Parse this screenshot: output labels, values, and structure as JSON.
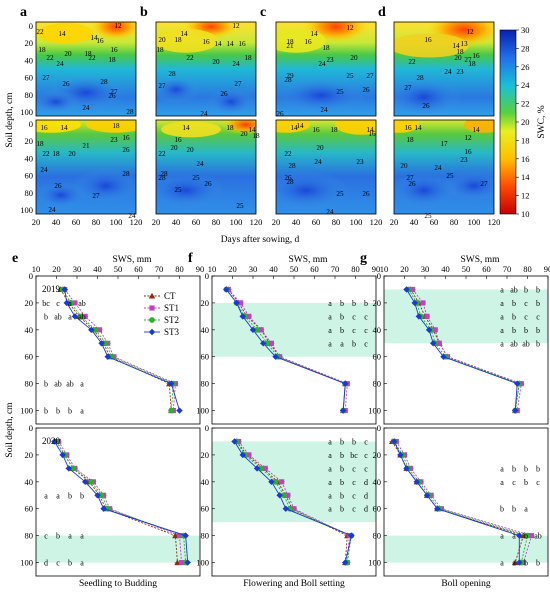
{
  "heatmaps": {
    "panel_letters": [
      "a",
      "b",
      "c",
      "d"
    ],
    "x_ticks": [
      "20",
      "40",
      "60",
      "80",
      "100",
      "120"
    ],
    "y_ticks": [
      "0",
      "20",
      "40",
      "60",
      "80",
      "100"
    ],
    "ylabel": "Soil depth, cm",
    "xlabel": "Days after sowing, d",
    "colorbar_label": "SWC, %",
    "colorbar_ticks": [
      "10",
      "12",
      "14",
      "16",
      "18",
      "20",
      "22",
      "24",
      "26",
      "28",
      "30"
    ],
    "contour_labels": [
      [
        [
          "14",
          62,
          36
        ],
        [
          "12",
          118,
          28
        ],
        [
          "14",
          94,
          40
        ],
        [
          "16",
          100,
          43
        ],
        [
          "18",
          42,
          52
        ],
        [
          "16",
          114,
          52
        ],
        [
          "20",
          68,
          56
        ],
        [
          "18",
          88,
          56
        ],
        [
          "22",
          92,
          60
        ],
        [
          "22",
          50,
          60
        ],
        [
          "24",
          60,
          66
        ],
        [
          "18",
          112,
          62
        ],
        [
          "27",
          46,
          80
        ],
        [
          "26",
          66,
          86
        ],
        [
          "28",
          104,
          84
        ],
        [
          "27",
          114,
          94
        ],
        [
          "26",
          112,
          98
        ],
        [
          "24",
          86,
          110
        ],
        [
          "28",
          130,
          114
        ],
        [
          "22",
          40,
          34
        ]
      ],
      [
        [
          "14",
          184,
          36
        ],
        [
          "12",
          236,
          28
        ],
        [
          "20",
          162,
          42
        ],
        [
          "18",
          178,
          42
        ],
        [
          "16",
          206,
          44
        ],
        [
          "14",
          218,
          46
        ],
        [
          "14",
          230,
          46
        ],
        [
          "16",
          242,
          46
        ],
        [
          "18",
          160,
          52
        ],
        [
          "22",
          190,
          60
        ],
        [
          "20",
          216,
          64
        ],
        [
          "24",
          236,
          66
        ],
        [
          "28",
          172,
          76
        ],
        [
          "27",
          162,
          88
        ],
        [
          "27",
          238,
          86
        ],
        [
          "26",
          224,
          96
        ],
        [
          "24",
          204,
          116
        ],
        [
          "18",
          248,
          60
        ]
      ],
      [
        [
          "14",
          314,
          36
        ],
        [
          "12",
          350,
          30
        ],
        [
          "18",
          290,
          44
        ],
        [
          "16",
          308,
          44
        ],
        [
          "18",
          326,
          50
        ],
        [
          "21",
          290,
          48
        ],
        [
          "20",
          354,
          60
        ],
        [
          "23",
          330,
          62
        ],
        [
          "24",
          322,
          66
        ],
        [
          "29",
          290,
          78
        ],
        [
          "28",
          288,
          82
        ],
        [
          "25",
          350,
          78
        ],
        [
          "27",
          370,
          78
        ],
        [
          "25",
          340,
          94
        ],
        [
          "26",
          366,
          92
        ],
        [
          "24",
          324,
          112
        ],
        [
          "26",
          280,
          116
        ]
      ],
      [
        [
          "12",
          470,
          34
        ],
        [
          "16",
          428,
          42
        ],
        [
          "13",
          464,
          46
        ],
        [
          "14",
          456,
          48
        ],
        [
          "18",
          460,
          54
        ],
        [
          "20",
          458,
          60
        ],
        [
          "27",
          468,
          62
        ],
        [
          "22",
          412,
          64
        ],
        [
          "18",
          472,
          66
        ],
        [
          "24",
          448,
          74
        ],
        [
          "23",
          460,
          74
        ],
        [
          "28",
          420,
          80
        ],
        [
          "27",
          408,
          90
        ],
        [
          "26",
          426,
          108
        ],
        [
          "16",
          476,
          58
        ]
      ],
      [
        [
          "16",
          44,
          130
        ],
        [
          "14",
          64,
          130
        ],
        [
          "18",
          116,
          128
        ],
        [
          "21",
          86,
          148
        ],
        [
          "23",
          114,
          142
        ],
        [
          "16",
          126,
          140
        ],
        [
          "22",
          46,
          156
        ],
        [
          "18",
          56,
          156
        ],
        [
          "20",
          72,
          156
        ],
        [
          "26",
          126,
          152
        ],
        [
          "24",
          44,
          172
        ],
        [
          "26",
          58,
          188
        ],
        [
          "28",
          126,
          176
        ],
        [
          "27",
          96,
          198
        ],
        [
          "24",
          52,
          212
        ],
        [
          "24",
          132,
          218
        ],
        [
          "18",
          40,
          146
        ]
      ],
      [
        [
          "14",
          186,
          130
        ],
        [
          "18",
          230,
          130
        ],
        [
          "20",
          244,
          136
        ],
        [
          "14",
          252,
          132
        ],
        [
          "18",
          256,
          138
        ],
        [
          "16",
          178,
          142
        ],
        [
          "22",
          162,
          156
        ],
        [
          "20",
          190,
          152
        ],
        [
          "24",
          200,
          166
        ],
        [
          "28",
          164,
          176
        ],
        [
          "28",
          162,
          180
        ],
        [
          "25",
          196,
          180
        ],
        [
          "26",
          208,
          186
        ],
        [
          "25",
          178,
          192
        ],
        [
          "25",
          240,
          208
        ],
        [
          "20",
          174,
          150
        ]
      ],
      [
        [
          "14",
          294,
          130
        ],
        [
          "14",
          300,
          128
        ],
        [
          "16",
          316,
          132
        ],
        [
          "18",
          334,
          132
        ],
        [
          "14",
          370,
          132
        ],
        [
          "16",
          372,
          136
        ],
        [
          "20",
          320,
          150
        ],
        [
          "22",
          288,
          156
        ],
        [
          "28",
          292,
          168
        ],
        [
          "24",
          318,
          164
        ],
        [
          "26",
          288,
          180
        ],
        [
          "23",
          360,
          164
        ],
        [
          "25",
          340,
          196
        ],
        [
          "26",
          366,
          196
        ],
        [
          "24",
          330,
          214
        ],
        [
          "28",
          290,
          184
        ]
      ],
      [
        [
          "16",
          408,
          130
        ],
        [
          "14",
          418,
          130
        ],
        [
          "18",
          410,
          142
        ],
        [
          "17",
          444,
          146
        ],
        [
          "12",
          468,
          140
        ],
        [
          "14",
          476,
          132
        ],
        [
          "16",
          468,
          154
        ],
        [
          "20",
          404,
          168
        ],
        [
          "24",
          438,
          170
        ],
        [
          "23",
          464,
          162
        ],
        [
          "25",
          450,
          178
        ],
        [
          "27",
          484,
          186
        ],
        [
          "26",
          412,
          186
        ],
        [
          "25",
          428,
          218
        ],
        [
          "27",
          410,
          180
        ]
      ]
    ]
  },
  "sws": {
    "panel_letters": [
      "e",
      "f",
      "g"
    ],
    "x_title": "SWS, mm",
    "x_ticks": [
      "10",
      "20",
      "30",
      "40",
      "50",
      "60",
      "70",
      "80",
      "90"
    ],
    "y_ticks": [
      "0",
      "20",
      "40",
      "60",
      "80",
      "100"
    ],
    "ylabel": "Soil depth, cm",
    "stage_labels": [
      "Seedling to Budding",
      "Flowering and Boll setting",
      "Boll opening"
    ],
    "year_labels": [
      "2019",
      "2020"
    ],
    "legend": [
      "CT",
      "ST1",
      "ST2",
      "ST3"
    ],
    "series_colors": [
      "#8b2e0f",
      "#c040c0",
      "#2cb030",
      "#1a3ad0"
    ],
    "shaded_bands": [
      [],
      [
        [
          20,
          60
        ]
      ],
      [
        [
          10,
          50
        ]
      ],
      [
        [
          80,
          100
        ]
      ],
      [
        [
          10,
          70
        ]
      ],
      [
        [
          80,
          100
        ]
      ]
    ],
    "letters": [
      [
        [
          "bc",
          "c",
          "a",
          "ab",
          20
        ],
        [
          "b",
          "ab",
          "a",
          "ab",
          30
        ],
        [
          "b",
          "ab",
          "ab",
          "a",
          80
        ],
        [
          "b",
          "b",
          "b",
          "a",
          100
        ]
      ],
      [
        [
          "a",
          "b",
          "b",
          "b",
          20
        ],
        [
          "a",
          "b",
          "c",
          "c",
          30
        ],
        [
          "a",
          "b",
          "c",
          "c",
          40
        ],
        [
          "a",
          "a",
          "b",
          "c",
          50
        ]
      ],
      [
        [
          "a",
          "ab",
          "b",
          "b",
          10
        ],
        [
          "a",
          "b",
          "c",
          "b",
          20
        ],
        [
          "a",
          "b",
          "c",
          "c",
          30
        ],
        [
          "a",
          "b",
          "b",
          "b",
          40
        ],
        [
          "a",
          "ab",
          "ab",
          "b",
          50
        ]
      ],
      [
        [
          "a",
          "a",
          "b",
          "b",
          50
        ],
        [
          "c",
          "b",
          "a",
          "a",
          80
        ],
        [
          "d",
          "c",
          "b",
          "a",
          100
        ]
      ],
      [
        [
          "a",
          "b",
          "b",
          "c",
          10
        ],
        [
          "a",
          "b",
          "bc",
          "c",
          20
        ],
        [
          "a",
          "b",
          "c",
          "c",
          30
        ],
        [
          "a",
          "b",
          "c",
          "d",
          40
        ],
        [
          "a",
          "b",
          "c",
          "d",
          50
        ],
        [
          "a",
          "b",
          "c",
          "d",
          60
        ]
      ],
      [
        [
          "a",
          "b",
          "b",
          "b",
          30
        ],
        [
          "a",
          "c",
          "b",
          "c",
          40
        ],
        [
          "b",
          "b",
          "a",
          null,
          60
        ],
        [
          "a",
          "a",
          "b",
          "ab",
          80
        ],
        [
          "a",
          "a",
          "b",
          "b",
          100
        ]
      ]
    ],
    "series": [
      [
        [
          22,
          24,
          23,
          24
        ],
        [
          26,
          29,
          27,
          25
        ],
        [
          31,
          34,
          32,
          29
        ],
        [
          38,
          41,
          39,
          37
        ],
        [
          43,
          45,
          44,
          42
        ],
        [
          46,
          48,
          47,
          45
        ],
        [
          75,
          78,
          77,
          76
        ],
        [
          76,
          77,
          76,
          80
        ]
      ],
      [
        [
          18,
          18,
          17,
          17
        ],
        [
          23,
          24,
          22,
          22
        ],
        [
          27,
          28,
          26,
          25
        ],
        [
          34,
          34,
          32,
          30
        ],
        [
          38,
          39,
          37,
          35
        ],
        [
          43,
          43,
          42,
          41
        ],
        [
          75,
          76,
          75,
          75
        ],
        [
          74,
          75,
          74,
          74
        ]
      ],
      [
        [
          23,
          24,
          22,
          21
        ],
        [
          27,
          29,
          26,
          25
        ],
        [
          30,
          31,
          28,
          27
        ],
        [
          34,
          35,
          33,
          32
        ],
        [
          37,
          37,
          35,
          34
        ],
        [
          41,
          41,
          40,
          39
        ],
        [
          76,
          77,
          76,
          75
        ],
        [
          74,
          75,
          74,
          74
        ]
      ],
      [
        [
          20,
          21,
          20,
          19
        ],
        [
          24,
          25,
          24,
          23
        ],
        [
          28,
          29,
          28,
          26
        ],
        [
          36,
          38,
          37,
          34
        ],
        [
          41,
          43,
          42,
          40
        ],
        [
          44,
          46,
          45,
          43
        ],
        [
          78,
          80,
          82,
          83
        ],
        [
          79,
          81,
          83,
          84
        ]
      ],
      [
        [
          22,
          23,
          22,
          21
        ],
        [
          27,
          28,
          26,
          25
        ],
        [
          35,
          36,
          34,
          32
        ],
        [
          42,
          44,
          41,
          39
        ],
        [
          46,
          47,
          45,
          43
        ],
        [
          49,
          50,
          48,
          46
        ],
        [
          76,
          77,
          78,
          78
        ],
        [
          75,
          76,
          76,
          75
        ]
      ],
      [
        [
          14,
          16,
          15,
          15
        ],
        [
          18,
          20,
          19,
          18
        ],
        [
          21,
          23,
          22,
          21
        ],
        [
          26,
          28,
          27,
          26
        ],
        [
          31,
          33,
          32,
          31
        ],
        [
          36,
          38,
          37,
          36
        ],
        [
          78,
          82,
          80,
          76
        ],
        [
          74,
          78,
          77,
          76
        ]
      ]
    ]
  },
  "chart_data": [
    {
      "type": "heatmap",
      "panels": [
        "a",
        "b",
        "c",
        "d"
      ],
      "rows_per_panel": 2,
      "xlabel": "Days after sowing, d",
      "ylabel": "Soil depth, cm",
      "x_range": [
        20,
        120
      ],
      "y_range": [
        0,
        100
      ],
      "colorbar": {
        "label": "SWC, %",
        "range": [
          10,
          30
        ]
      }
    },
    {
      "type": "line",
      "panels": [
        "e",
        "f",
        "g"
      ],
      "years": [
        "2019",
        "2020"
      ],
      "xlabel": "SWS, mm",
      "ylabel": "Soil depth, cm",
      "x_range": [
        10,
        90
      ],
      "y_range": [
        0,
        110
      ],
      "series_names": [
        "CT",
        "ST1",
        "ST2",
        "ST3"
      ],
      "depths": [
        10,
        20,
        30,
        40,
        50,
        60,
        80,
        100
      ]
    }
  ]
}
